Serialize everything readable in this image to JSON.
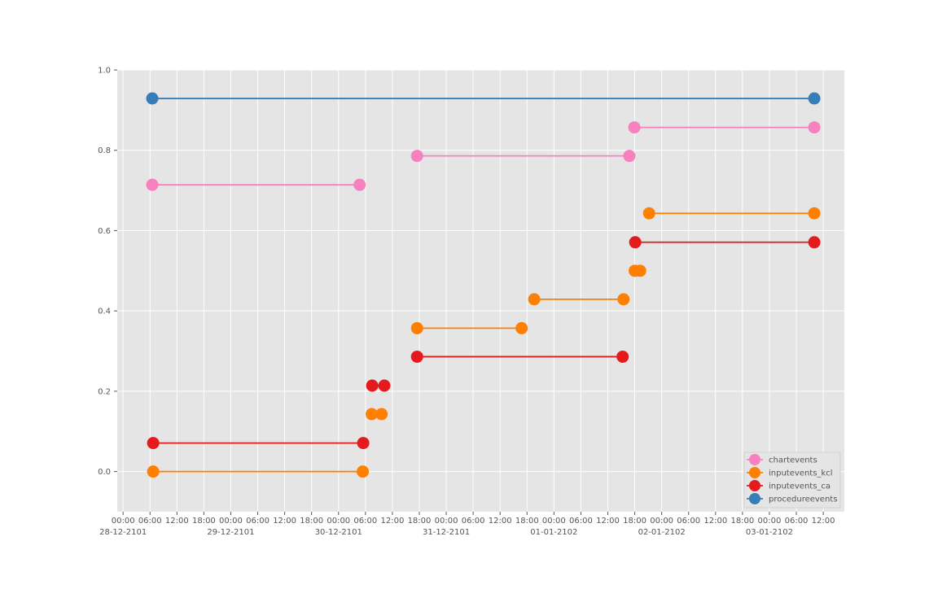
{
  "chart_data": {
    "type": "line",
    "title": "",
    "xlabel": "",
    "ylabel": "",
    "x_unit": "hours since 28-12-2101 00:00",
    "xlim": [
      -1.3,
      160.7
    ],
    "ylim": [
      -0.1,
      1.0
    ],
    "grid": true,
    "legend_position": "bottom-right",
    "y_ticks": [
      {
        "value": 0.0,
        "label": "0.0"
      },
      {
        "value": 0.2,
        "label": "0.2"
      },
      {
        "value": 0.4,
        "label": "0.4"
      },
      {
        "value": 0.6,
        "label": "0.6"
      },
      {
        "value": 0.8,
        "label": "0.8"
      },
      {
        "value": 1.0,
        "label": "1.0"
      }
    ],
    "x_ticks": [
      {
        "value": 0,
        "label": "00:00"
      },
      {
        "value": 6,
        "label": "06:00"
      },
      {
        "value": 12,
        "label": "12:00"
      },
      {
        "value": 18,
        "label": "18:00"
      },
      {
        "value": 24,
        "label": "00:00"
      },
      {
        "value": 30,
        "label": "06:00"
      },
      {
        "value": 36,
        "label": "12:00"
      },
      {
        "value": 42,
        "label": "18:00"
      },
      {
        "value": 48,
        "label": "00:00"
      },
      {
        "value": 54,
        "label": "06:00"
      },
      {
        "value": 60,
        "label": "12:00"
      },
      {
        "value": 66,
        "label": "18:00"
      },
      {
        "value": 72,
        "label": "00:00"
      },
      {
        "value": 78,
        "label": "06:00"
      },
      {
        "value": 84,
        "label": "12:00"
      },
      {
        "value": 90,
        "label": "18:00"
      },
      {
        "value": 96,
        "label": "00:00"
      },
      {
        "value": 102,
        "label": "06:00"
      },
      {
        "value": 108,
        "label": "12:00"
      },
      {
        "value": 114,
        "label": "18:00"
      },
      {
        "value": 120,
        "label": "00:00"
      },
      {
        "value": 126,
        "label": "06:00"
      },
      {
        "value": 132,
        "label": "12:00"
      },
      {
        "value": 138,
        "label": "18:00"
      },
      {
        "value": 144,
        "label": "00:00"
      },
      {
        "value": 150,
        "label": "06:00"
      },
      {
        "value": 156,
        "label": "12:00"
      }
    ],
    "date_labels": [
      {
        "value": 0,
        "label": "28-12-2101"
      },
      {
        "value": 24,
        "label": "29-12-2101"
      },
      {
        "value": 48,
        "label": "30-12-2101"
      },
      {
        "value": 72,
        "label": "31-12-2101"
      },
      {
        "value": 96,
        "label": "01-01-2102"
      },
      {
        "value": 120,
        "label": "02-01-2102"
      },
      {
        "value": 144,
        "label": "03-01-2102"
      }
    ],
    "series": [
      {
        "name": "chartevents",
        "color": "#f781bf",
        "segments": [
          {
            "y": 0.714,
            "x": [
              6.5,
              52.7
            ]
          },
          {
            "y": 0.786,
            "x": [
              65.5,
              112.8
            ]
          },
          {
            "y": 0.857,
            "x": [
              113.9,
              154.0
            ]
          }
        ]
      },
      {
        "name": "inputevents_kcl",
        "color": "#ff7f00",
        "segments": [
          {
            "y": 0.0,
            "x": [
              6.7,
              53.4
            ]
          },
          {
            "y": 0.143,
            "x": [
              55.4,
              57.6
            ]
          },
          {
            "y": 0.357,
            "x": [
              65.5,
              88.8
            ]
          },
          {
            "y": 0.429,
            "x": [
              91.6,
              111.5
            ]
          },
          {
            "y": 0.5,
            "x": [
              114.0,
              115.2
            ]
          },
          {
            "y": 0.643,
            "x": [
              117.2,
              154.0
            ]
          }
        ]
      },
      {
        "name": "inputevents_ca",
        "color": "#e41a1c",
        "segments": [
          {
            "y": 0.071,
            "x": [
              6.7,
              53.5
            ]
          },
          {
            "y": 0.214,
            "x": [
              55.5,
              58.2
            ]
          },
          {
            "y": 0.286,
            "x": [
              65.5,
              111.3
            ]
          },
          {
            "y": 0.571,
            "x": [
              114.1,
              154.0
            ]
          }
        ]
      },
      {
        "name": "procedureevents",
        "color": "#377eb8",
        "segments": [
          {
            "y": 0.929,
            "x": [
              6.5,
              154.0
            ]
          }
        ]
      }
    ]
  }
}
